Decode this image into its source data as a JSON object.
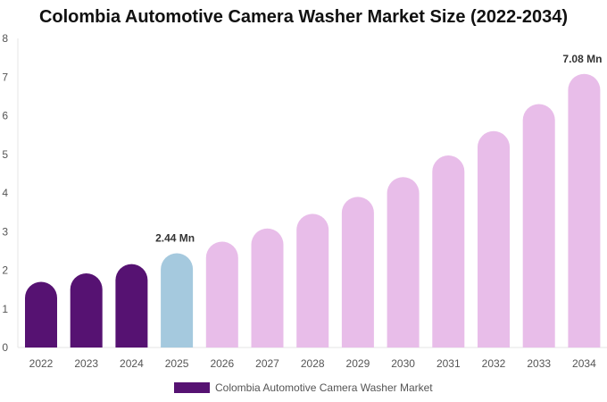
{
  "chart_data": {
    "type": "bar",
    "title": "Colombia Automotive Camera Washer Market Size (2022-2034)",
    "categories": [
      "2022",
      "2023",
      "2024",
      "2025",
      "2026",
      "2027",
      "2028",
      "2029",
      "2030",
      "2031",
      "2032",
      "2033",
      "2034"
    ],
    "series": [
      {
        "name": "Colombia Automotive Camera Washer Market",
        "values": [
          1.7,
          1.92,
          2.16,
          2.44,
          2.74,
          3.08,
          3.46,
          3.9,
          4.41,
          4.97,
          5.6,
          6.3,
          7.08
        ]
      }
    ],
    "bar_colors": [
      "#561272",
      "#561272",
      "#561272",
      "#a5c9de",
      "#e8bde9",
      "#e8bde9",
      "#e8bde9",
      "#e8bde9",
      "#e8bde9",
      "#e8bde9",
      "#e8bde9",
      "#e8bde9",
      "#e8bde9"
    ],
    "data_labels": [
      {
        "index": 3,
        "text": "2.44 Mn"
      },
      {
        "index": 12,
        "text": "7.08 Mn"
      }
    ],
    "yticks": [
      0,
      1,
      2,
      3,
      4,
      5,
      6,
      7,
      8
    ],
    "ylim": [
      0,
      8
    ],
    "xlabel": "",
    "ylabel": "",
    "legend": {
      "position": "bottom",
      "label": "Colombia Automotive Camera Washer Market",
      "color": "#561272"
    }
  }
}
